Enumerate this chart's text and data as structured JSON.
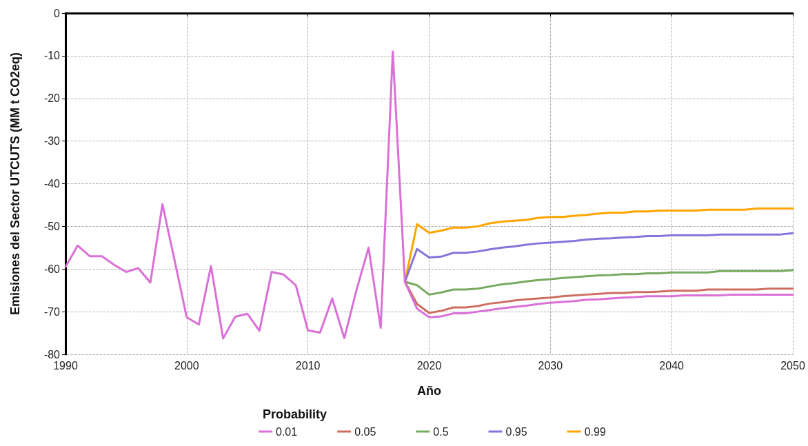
{
  "chart_data": {
    "type": "line",
    "xlabel": "Año",
    "ylabel": "Emisiones del Sector UTCUTS (MM t CO2eq)",
    "legend_title": "Probability",
    "legend": "bottom",
    "grid": true,
    "marker": "none",
    "line_style": "solid",
    "xlim": [
      1990,
      2050
    ],
    "xticks": [
      1990,
      2000,
      2010,
      2020,
      2030,
      2040,
      2050
    ],
    "ylim": [
      -80,
      0
    ],
    "yticks": [
      -80,
      -70,
      -60,
      -50,
      -40,
      -30,
      -20,
      -10,
      0
    ],
    "x": [
      1990,
      1991,
      1992,
      1993,
      1994,
      1995,
      1996,
      1997,
      1998,
      1999,
      2000,
      2001,
      2002,
      2003,
      2004,
      2005,
      2006,
      2007,
      2008,
      2009,
      2010,
      2011,
      2012,
      2013,
      2014,
      2015,
      2016,
      2017,
      2018,
      2019,
      2020,
      2021,
      2022,
      2023,
      2024,
      2025,
      2026,
      2027,
      2028,
      2029,
      2030,
      2031,
      2032,
      2033,
      2034,
      2035,
      2036,
      2037,
      2038,
      2039,
      2040,
      2041,
      2042,
      2043,
      2044,
      2045,
      2046,
      2047,
      2048,
      2049,
      2050
    ],
    "series": [
      {
        "name": "0.01",
        "color": "#da70d6",
        "values": [
          -59.5,
          -54.5,
          -57,
          -57,
          -59,
          -60.7,
          -59.8,
          -63.2,
          -44.8,
          -58,
          -71.3,
          -73,
          -59.3,
          -76.3,
          -71.2,
          -70.5,
          -74.5,
          -60.7,
          -61.3,
          -63.8,
          -74.4,
          -74.9,
          -66.9,
          -76.2,
          -65,
          -55,
          -73.8,
          -9,
          -63,
          -69.3,
          -71.3,
          -71.1,
          -70.4,
          -70.4,
          -70,
          -69.6,
          -69.2,
          -68.9,
          -68.6,
          -68.2,
          -67.9,
          -67.7,
          -67.5,
          -67.2,
          -67.1,
          -66.9,
          -66.7,
          -66.6,
          -66.4,
          -66.4,
          -66.4,
          -66.2,
          -66.2,
          -66.2,
          -66.2,
          -66,
          -66,
          -66,
          -66,
          -66,
          -66
        ]
      },
      {
        "name": "0.05",
        "color": "#cd6f61",
        "x": [
          2018,
          2019,
          2020,
          2021,
          2022,
          2023,
          2024,
          2025,
          2026,
          2027,
          2028,
          2029,
          2030,
          2031,
          2032,
          2033,
          2034,
          2035,
          2036,
          2037,
          2038,
          2039,
          2040,
          2041,
          2042,
          2043,
          2044,
          2045,
          2046,
          2047,
          2048,
          2049,
          2050
        ],
        "values": [
          -63,
          -68.2,
          -70.3,
          -69.8,
          -69,
          -69,
          -68.7,
          -68.1,
          -67.8,
          -67.4,
          -67.1,
          -66.9,
          -66.7,
          -66.4,
          -66.2,
          -66,
          -65.8,
          -65.6,
          -65.6,
          -65.4,
          -65.4,
          -65.3,
          -65.1,
          -65.1,
          -65.1,
          -64.8,
          -64.8,
          -64.8,
          -64.8,
          -64.8,
          -64.6,
          -64.6,
          -64.6
        ]
      },
      {
        "name": "0.5",
        "color": "#77aa5f",
        "x": [
          2018,
          2019,
          2020,
          2021,
          2022,
          2023,
          2024,
          2025,
          2026,
          2027,
          2028,
          2029,
          2030,
          2031,
          2032,
          2033,
          2034,
          2035,
          2036,
          2037,
          2038,
          2039,
          2040,
          2041,
          2042,
          2043,
          2044,
          2045,
          2046,
          2047,
          2048,
          2049,
          2050
        ],
        "values": [
          -63,
          -63.8,
          -66,
          -65.5,
          -64.8,
          -64.8,
          -64.6,
          -64.1,
          -63.6,
          -63.3,
          -62.9,
          -62.6,
          -62.4,
          -62.1,
          -61.9,
          -61.7,
          -61.5,
          -61.4,
          -61.2,
          -61.2,
          -61,
          -61,
          -60.8,
          -60.8,
          -60.8,
          -60.8,
          -60.5,
          -60.5,
          -60.5,
          -60.5,
          -60.5,
          -60.5,
          -60.3
        ]
      },
      {
        "name": "0.95",
        "color": "#8773dc",
        "x": [
          2018,
          2019,
          2020,
          2021,
          2022,
          2023,
          2024,
          2025,
          2026,
          2027,
          2028,
          2029,
          2030,
          2031,
          2032,
          2033,
          2034,
          2035,
          2036,
          2037,
          2038,
          2039,
          2040,
          2041,
          2042,
          2043,
          2044,
          2045,
          2046,
          2047,
          2048,
          2049,
          2050
        ],
        "values": [
          -63,
          -55.3,
          -57.3,
          -57.1,
          -56.2,
          -56.2,
          -55.9,
          -55.4,
          -55,
          -54.7,
          -54.3,
          -54,
          -53.8,
          -53.6,
          -53.4,
          -53.1,
          -52.9,
          -52.8,
          -52.6,
          -52.5,
          -52.3,
          -52.3,
          -52.1,
          -52.1,
          -52.1,
          -52.1,
          -51.9,
          -51.9,
          -51.9,
          -51.9,
          -51.9,
          -51.9,
          -51.6
        ]
      },
      {
        "name": "0.99",
        "color": "#ffa500",
        "x": [
          2018,
          2019,
          2020,
          2021,
          2022,
          2023,
          2024,
          2025,
          2026,
          2027,
          2028,
          2029,
          2030,
          2031,
          2032,
          2033,
          2034,
          2035,
          2036,
          2037,
          2038,
          2039,
          2040,
          2041,
          2042,
          2043,
          2044,
          2045,
          2046,
          2047,
          2048,
          2049,
          2050
        ],
        "values": [
          -63,
          -49.5,
          -51.5,
          -51,
          -50.3,
          -50.3,
          -50,
          -49.3,
          -48.9,
          -48.7,
          -48.5,
          -48,
          -47.8,
          -47.8,
          -47.5,
          -47.3,
          -47,
          -46.8,
          -46.8,
          -46.5,
          -46.5,
          -46.3,
          -46.3,
          -46.3,
          -46.3,
          -46.1,
          -46.1,
          -46.1,
          -46.1,
          -45.8,
          -45.8,
          -45.8,
          -45.8
        ]
      }
    ]
  }
}
